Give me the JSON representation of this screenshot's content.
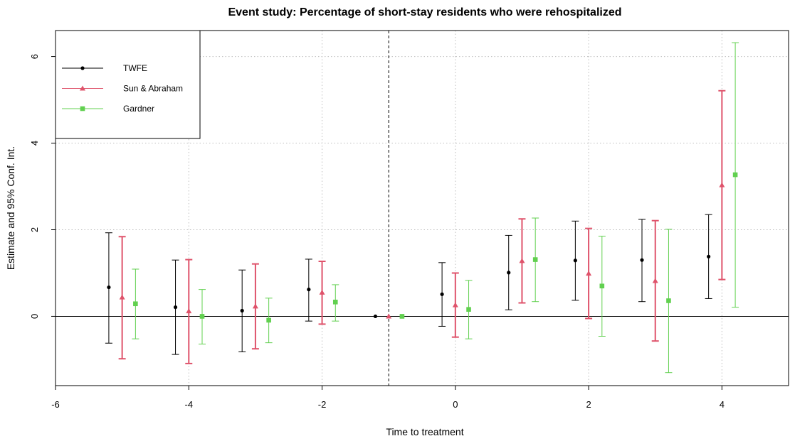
{
  "chart_data": {
    "type": "scatter",
    "title": "Event study: Percentage of short-stay residents who were rehospitalized",
    "xlabel": "Time to treatment",
    "ylabel": "Estimate and 95% Conf. Int.",
    "xlim": [
      -6,
      5
    ],
    "ylim": [
      -1.6,
      6.6
    ],
    "xticks": [
      -6,
      -4,
      -2,
      0,
      2,
      4
    ],
    "yticks": [
      0,
      2,
      4,
      6
    ],
    "grid": true,
    "legend_position": "top-left",
    "reference_line_y": 0,
    "treatment_line_x": -1,
    "series": [
      {
        "name": "TWFE",
        "color": "#000000",
        "marker": "circle",
        "x": [
          -5.2,
          -4.2,
          -3.2,
          -2.2,
          -1.2,
          -0.2,
          0.8,
          1.8,
          2.8,
          3.8
        ],
        "y": [
          0.67,
          0.21,
          0.13,
          0.62,
          0.0,
          0.51,
          1.01,
          1.29,
          1.3,
          1.38
        ],
        "lo": [
          -0.62,
          -0.88,
          -0.82,
          -0.11,
          0.0,
          -0.23,
          0.15,
          0.37,
          0.34,
          0.41
        ],
        "hi": [
          1.93,
          1.3,
          1.07,
          1.32,
          0.0,
          1.24,
          1.87,
          2.2,
          2.24,
          2.35
        ]
      },
      {
        "name": "Sun & Abraham",
        "color": "#DF536B",
        "marker": "triangle",
        "x": [
          -5.0,
          -4.0,
          -3.0,
          -2.0,
          -1.0,
          0.0,
          1.0,
          2.0,
          3.0,
          4.0
        ],
        "y": [
          0.44,
          0.12,
          0.23,
          0.55,
          0.0,
          0.26,
          1.28,
          0.99,
          0.82,
          3.03
        ],
        "lo": [
          -0.98,
          -1.09,
          -0.75,
          -0.18,
          0.0,
          -0.48,
          0.31,
          -0.05,
          -0.57,
          0.85
        ],
        "hi": [
          1.84,
          1.31,
          1.21,
          1.27,
          0.0,
          1.0,
          2.25,
          2.03,
          2.21,
          5.21
        ]
      },
      {
        "name": "Gardner",
        "color": "#61D04F",
        "marker": "square",
        "x": [
          -4.8,
          -3.8,
          -2.8,
          -1.8,
          -0.8,
          0.2,
          1.2,
          2.2,
          3.2,
          4.2
        ],
        "y": [
          0.29,
          0.0,
          -0.09,
          0.33,
          0.0,
          0.16,
          1.31,
          0.7,
          0.36,
          3.27
        ],
        "lo": [
          -0.52,
          -0.64,
          -0.61,
          -0.11,
          0.0,
          -0.52,
          0.34,
          -0.46,
          -1.3,
          0.21
        ],
        "hi": [
          1.09,
          0.62,
          0.42,
          0.73,
          0.0,
          0.83,
          2.27,
          1.85,
          2.01,
          6.32
        ]
      }
    ]
  }
}
